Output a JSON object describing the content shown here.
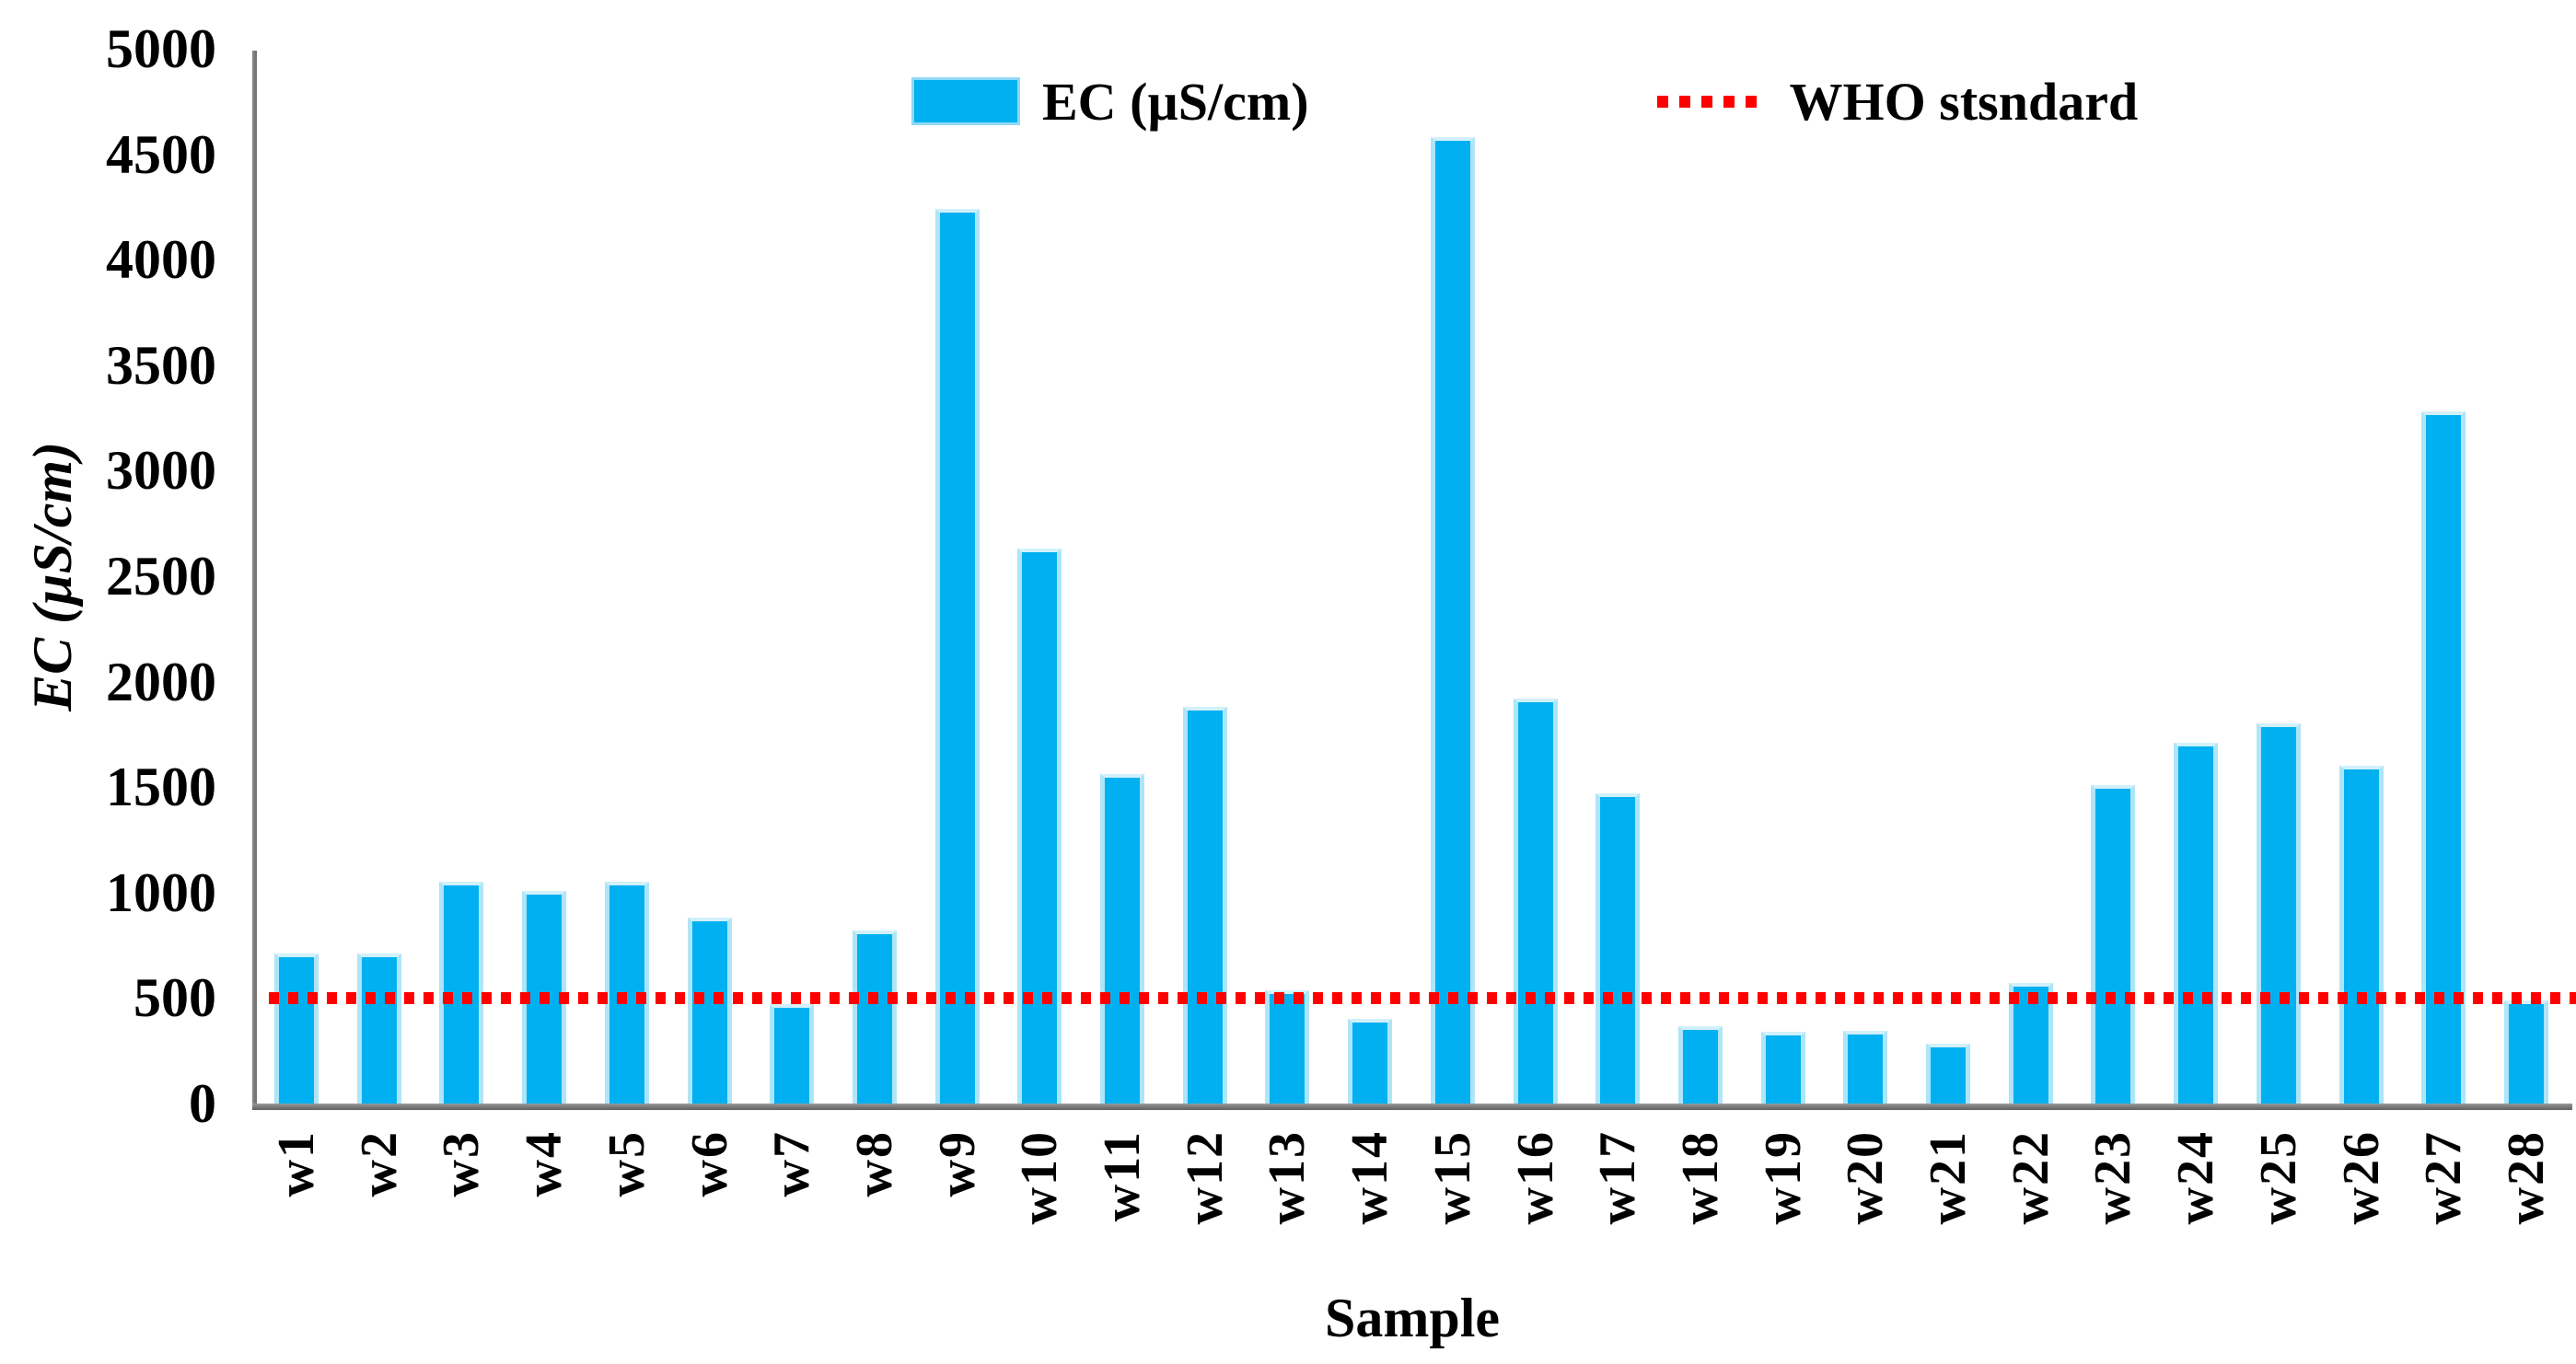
{
  "chart_data": {
    "type": "bar",
    "title": "",
    "xlabel": "Sample",
    "ylabel": "EC (µS/cm)",
    "categories": [
      "w1",
      "w2",
      "w3",
      "w4",
      "w5",
      "w6",
      "w7",
      "w8",
      "w9",
      "w10",
      "w11",
      "w12",
      "w13",
      "w14",
      "w15",
      "w16",
      "w17",
      "w18",
      "w19",
      "w20",
      "w21",
      "w22",
      "w23",
      "w24",
      "w25",
      "w26",
      "w27",
      "w28"
    ],
    "series": [
      {
        "name": "EC (µS/cm)",
        "values": [
          710,
          710,
          1050,
          1010,
          1050,
          880,
          470,
          820,
          4240,
          2630,
          1560,
          1880,
          535,
          400,
          4580,
          1920,
          1470,
          365,
          340,
          345,
          285,
          570,
          1510,
          1710,
          1800,
          1600,
          3280,
          490
        ]
      }
    ],
    "reference_line": {
      "label": "WHO stsndard",
      "value": 500
    },
    "ylim": [
      0,
      5000
    ],
    "y_ticks": [
      0,
      500,
      1000,
      1500,
      2000,
      2500,
      3000,
      3500,
      4000,
      4500,
      5000
    ],
    "grid": false,
    "legend_position": "top-center",
    "colors": {
      "bar": "#00b0f0",
      "bar_edge": "#aee5f8",
      "reference": "#ff0000",
      "axis": "#7a7a7a",
      "text": "#000000"
    }
  },
  "legend": {
    "ec_label": "EC (µS/cm)",
    "who_label": "WHO stsndard"
  },
  "axes": {
    "y_title": "EC (µS/cm)",
    "x_title": "Sample"
  }
}
